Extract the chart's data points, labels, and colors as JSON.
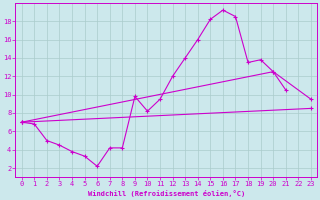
{
  "background_color": "#cce8ec",
  "grid_color": "#aacccc",
  "line_color": "#cc00cc",
  "xlabel": "Windchill (Refroidissement éolien,°C)",
  "xlim": [
    -0.5,
    23.5
  ],
  "ylim": [
    1.0,
    20.0
  ],
  "xticks": [
    0,
    1,
    2,
    3,
    4,
    5,
    6,
    7,
    8,
    9,
    10,
    11,
    12,
    13,
    14,
    15,
    16,
    17,
    18,
    19,
    20,
    21,
    22,
    23
  ],
  "yticks": [
    2,
    4,
    6,
    8,
    10,
    12,
    14,
    16,
    18
  ],
  "series1_x": [
    0,
    1,
    2,
    3,
    4,
    5,
    6,
    7,
    8,
    9,
    10,
    11,
    12,
    13,
    14,
    15,
    16,
    17,
    18,
    19,
    20,
    21
  ],
  "series1_y": [
    7.0,
    6.8,
    5.0,
    4.5,
    3.8,
    3.3,
    2.2,
    4.2,
    4.2,
    9.8,
    8.2,
    9.5,
    12.0,
    14.0,
    16.0,
    18.2,
    19.2,
    18.5,
    13.5,
    13.8,
    12.5,
    10.5
  ],
  "series2_x": [
    0,
    20,
    23
  ],
  "series2_y": [
    7.0,
    12.5,
    9.5
  ],
  "series3_x": [
    0,
    23
  ],
  "series3_y": [
    7.0,
    8.5
  ]
}
